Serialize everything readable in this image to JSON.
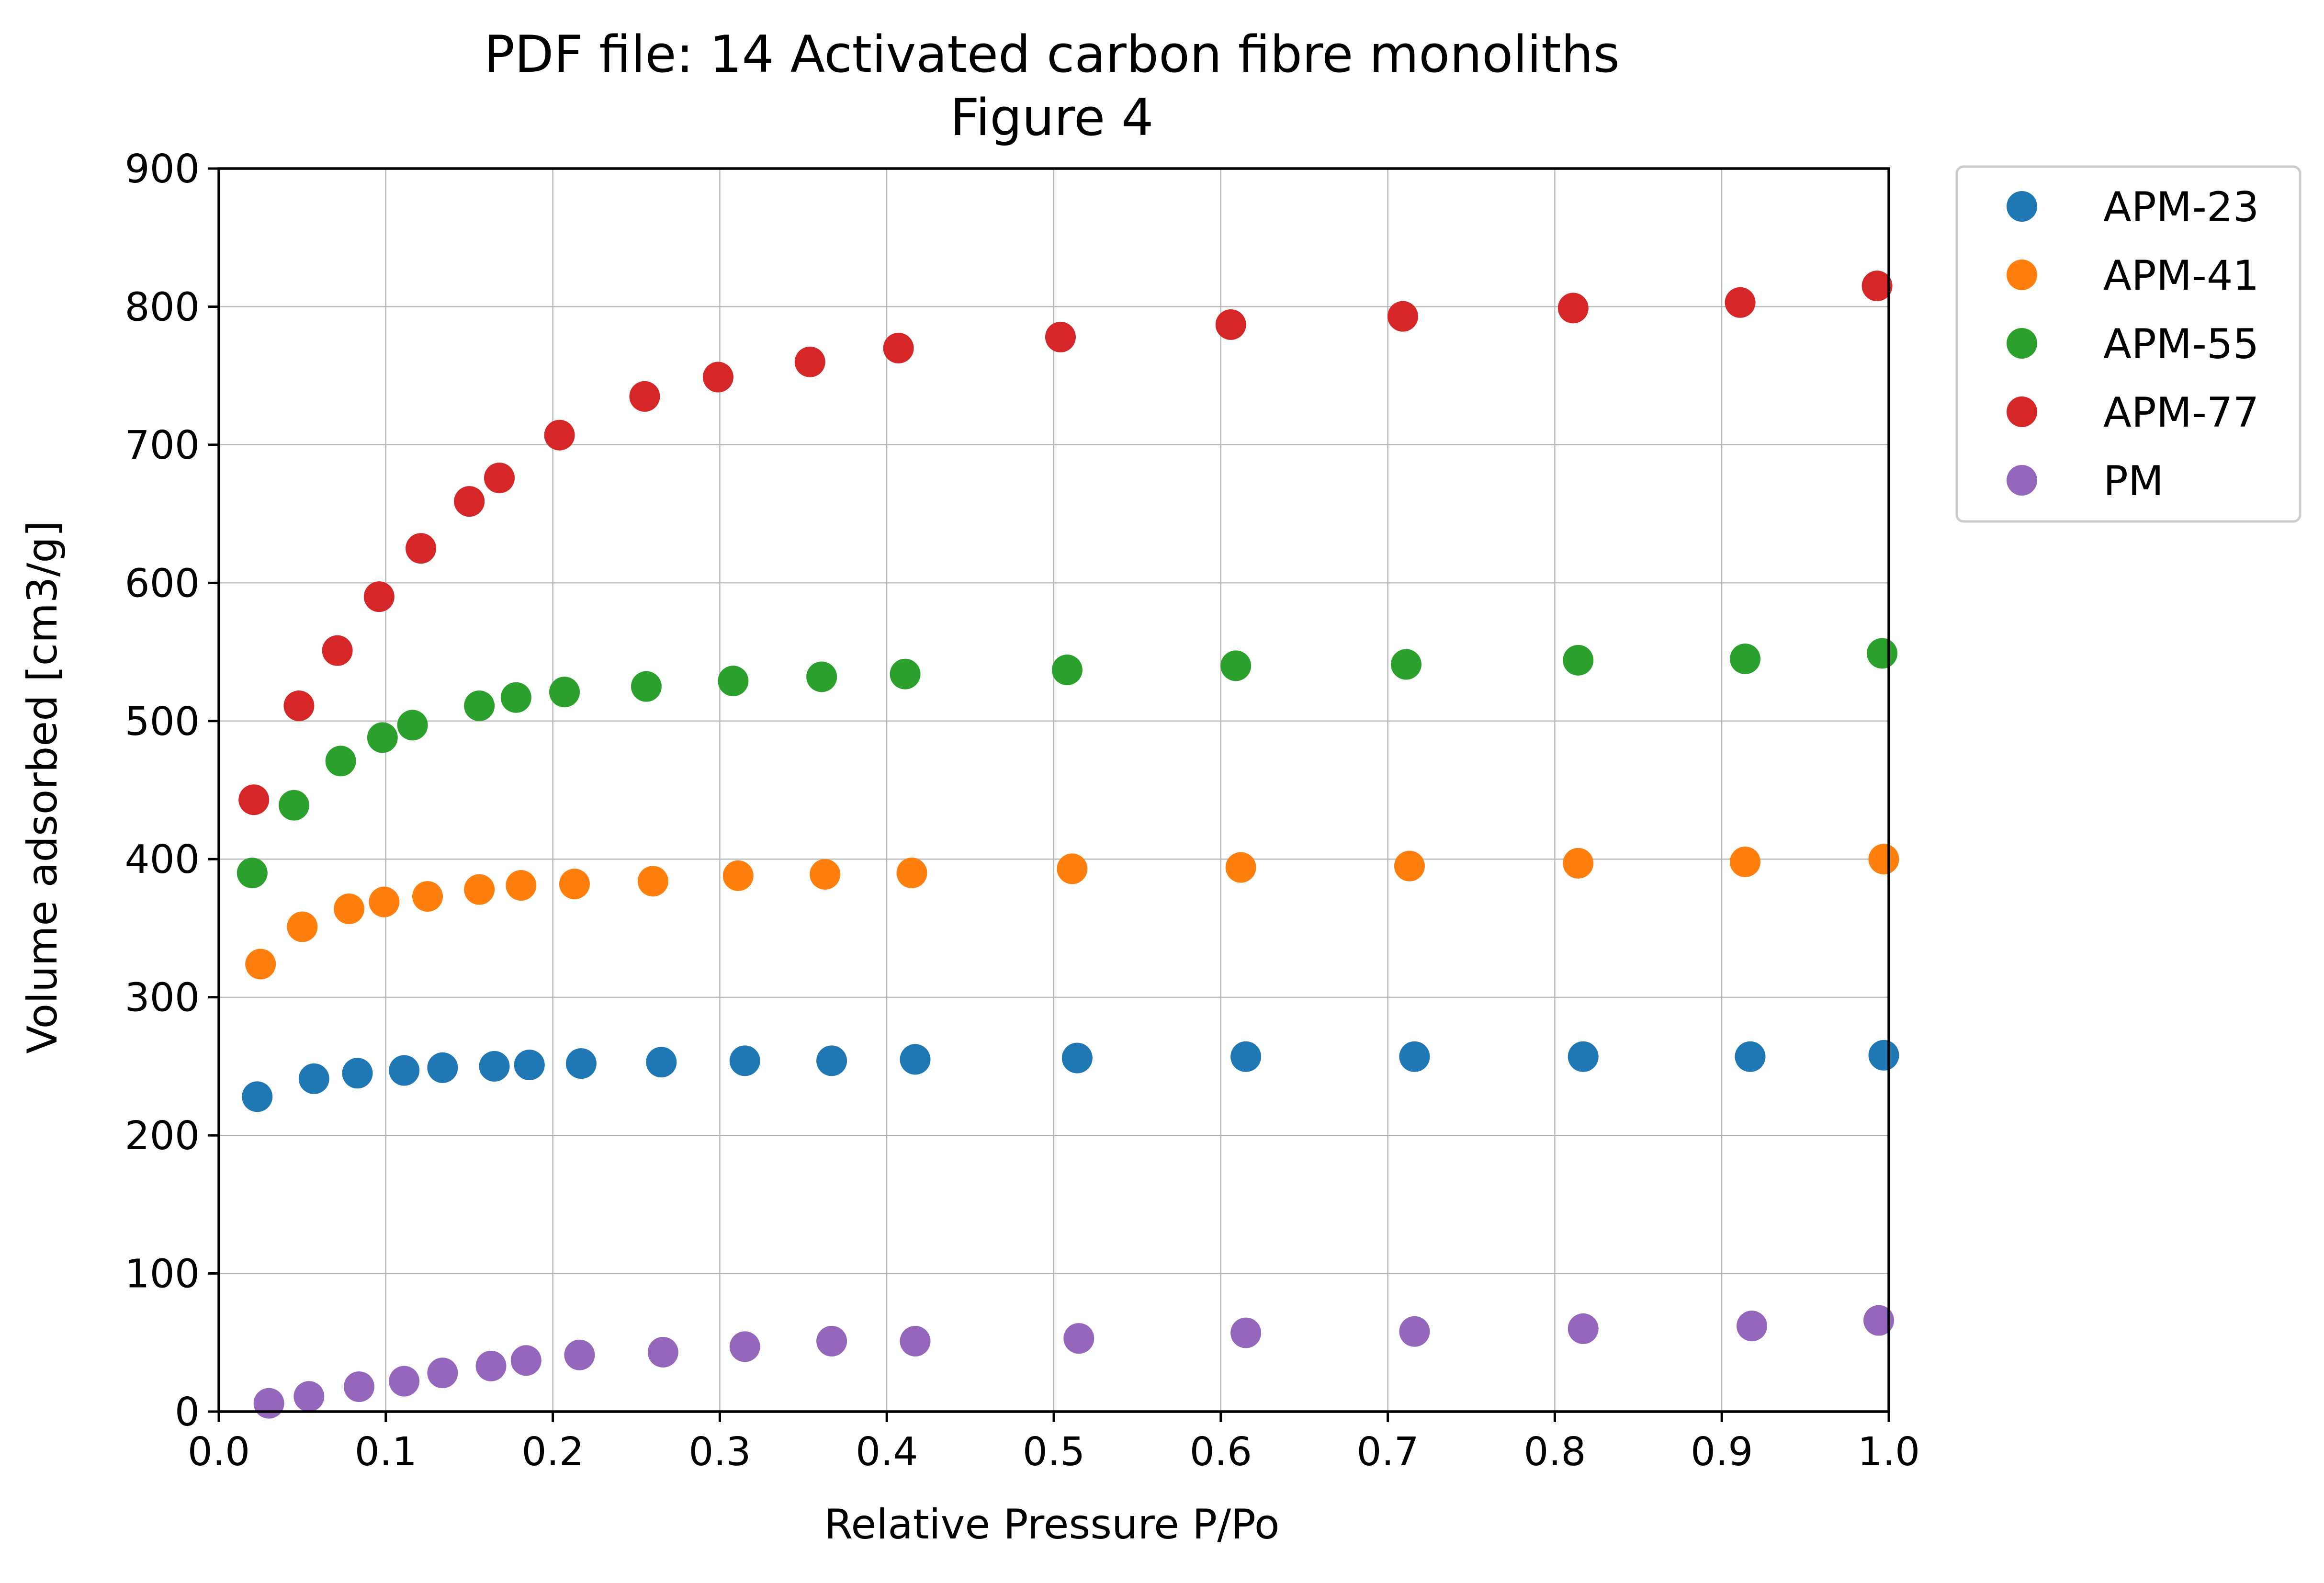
{
  "chart_data": {
    "type": "scatter",
    "title": "PDF file: 14 Activated carbon fibre monoliths",
    "subtitle": "Figure 4",
    "xlabel": "Relative Pressure P/Po",
    "ylabel": "Volume adsorbed [cm3/g]",
    "xlim": [
      0.0,
      1.0
    ],
    "ylim": [
      0,
      900
    ],
    "x_ticks": [
      "0.0",
      "0.1",
      "0.2",
      "0.3",
      "0.4",
      "0.5",
      "0.6",
      "0.7",
      "0.8",
      "0.9",
      "1.0"
    ],
    "y_ticks": [
      "0",
      "100",
      "200",
      "300",
      "400",
      "500",
      "600",
      "700",
      "800",
      "900"
    ],
    "grid": true,
    "legend_position": "outside-top-right",
    "series": [
      {
        "name": "APM-23",
        "color": "#1f77b4",
        "x": [
          0.023,
          0.057,
          0.083,
          0.111,
          0.134,
          0.165,
          0.186,
          0.217,
          0.265,
          0.315,
          0.367,
          0.417,
          0.514,
          0.615,
          0.716,
          0.817,
          0.917,
          0.997
        ],
        "y": [
          228,
          241,
          245,
          247,
          249,
          250,
          251,
          252,
          253,
          254,
          254,
          255,
          256,
          257,
          257,
          257,
          257,
          258
        ]
      },
      {
        "name": "APM-41",
        "color": "#ff7f0e",
        "x": [
          0.025,
          0.05,
          0.078,
          0.099,
          0.125,
          0.156,
          0.181,
          0.213,
          0.26,
          0.311,
          0.363,
          0.415,
          0.511,
          0.612,
          0.713,
          0.814,
          0.914,
          0.997
        ],
        "y": [
          324,
          351,
          364,
          369,
          373,
          378,
          381,
          382,
          384,
          388,
          389,
          390,
          393,
          394,
          395,
          397,
          398,
          400
        ]
      },
      {
        "name": "APM-55",
        "color": "#2ca02c",
        "x": [
          0.02,
          0.045,
          0.073,
          0.098,
          0.116,
          0.156,
          0.178,
          0.207,
          0.256,
          0.308,
          0.361,
          0.411,
          0.508,
          0.609,
          0.711,
          0.814,
          0.914,
          0.996
        ],
        "y": [
          390,
          439,
          471,
          488,
          497,
          511,
          517,
          521,
          525,
          529,
          532,
          534,
          537,
          540,
          541,
          544,
          545,
          549
        ]
      },
      {
        "name": "APM-77",
        "color": "#d62728",
        "x": [
          0.021,
          0.048,
          0.071,
          0.096,
          0.121,
          0.15,
          0.168,
          0.204,
          0.255,
          0.299,
          0.354,
          0.407,
          0.504,
          0.606,
          0.709,
          0.811,
          0.911,
          0.993
        ],
        "y": [
          443,
          511,
          551,
          590,
          625,
          659,
          676,
          707,
          735,
          749,
          760,
          770,
          778,
          787,
          793,
          799,
          803,
          815
        ]
      },
      {
        "name": "PM",
        "color": "#9467bd",
        "x": [
          0.03,
          0.054,
          0.084,
          0.111,
          0.134,
          0.163,
          0.184,
          0.216,
          0.266,
          0.315,
          0.367,
          0.417,
          0.515,
          0.615,
          0.716,
          0.817,
          0.918,
          0.994
        ],
        "y": [
          6,
          11,
          18,
          22,
          28,
          33,
          37,
          41,
          43,
          47,
          51,
          51,
          53,
          57,
          58,
          60,
          62,
          66
        ]
      }
    ]
  }
}
